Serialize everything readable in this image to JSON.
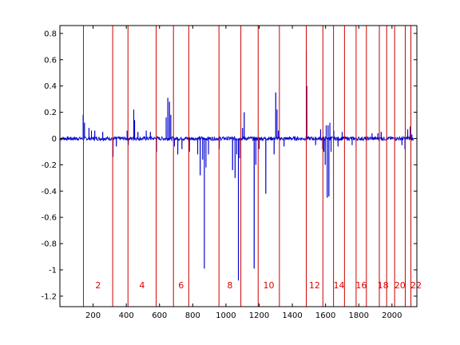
{
  "chart_data": {
    "type": "line",
    "title": "",
    "xlabel": "",
    "ylabel": "",
    "xlim": [
      0,
      2150
    ],
    "ylim": [
      -1.28,
      0.86
    ],
    "grid": false,
    "legend": "none",
    "colors": {
      "series": "#0000cc",
      "boundary": "#cc0000",
      "region_label": "#e00000",
      "axes": "#000000"
    },
    "x_ticks": [
      200,
      400,
      600,
      800,
      1000,
      1200,
      1400,
      1600,
      1800,
      2000
    ],
    "x_tick_labels": [
      "200",
      "400",
      "600",
      "800",
      "1000",
      "1200",
      "1400",
      "1600",
      "1800",
      "2000"
    ],
    "y_ticks": [
      0.8,
      0.6,
      0.4,
      0.2,
      0,
      -0.2,
      -0.4,
      -0.6,
      -0.8,
      -1,
      -1.2
    ],
    "y_tick_labels": [
      "0.8",
      "0.6",
      "0.4",
      "0.2",
      "0",
      "-0.2",
      "-0.4",
      "-0.6",
      "-0.8",
      "-1",
      "-1.2"
    ],
    "boundaries": [
      142,
      318,
      410,
      580,
      684,
      776,
      958,
      1090,
      1194,
      1322,
      1484,
      1584,
      1648,
      1714,
      1784,
      1846,
      1924,
      1968,
      2016,
      2080,
      2114
    ],
    "region_labels": [
      {
        "text": "2",
        "x": 230
      },
      {
        "text": "4",
        "x": 495
      },
      {
        "text": "6",
        "x": 730
      },
      {
        "text": "8",
        "x": 1024
      },
      {
        "text": "10",
        "x": 1258
      },
      {
        "text": "12",
        "x": 1534
      },
      {
        "text": "14",
        "x": 1681
      },
      {
        "text": "16",
        "x": 1815
      },
      {
        "text": "18",
        "x": 1946
      },
      {
        "text": "20",
        "x": 2048
      },
      {
        "text": "22",
        "x": 2145
      }
    ],
    "series": [
      {
        "spikes": [
          {
            "x": 140,
            "y": 0.18
          },
          {
            "x": 148,
            "y": 0.12
          },
          {
            "x": 175,
            "y": 0.08
          },
          {
            "x": 190,
            "y": 0.06
          },
          {
            "x": 210,
            "y": 0.06
          },
          {
            "x": 258,
            "y": 0.05
          },
          {
            "x": 320,
            "y": -0.14
          },
          {
            "x": 340,
            "y": -0.06
          },
          {
            "x": 405,
            "y": 0.06
          },
          {
            "x": 412,
            "y": -0.05
          },
          {
            "x": 445,
            "y": 0.22
          },
          {
            "x": 450,
            "y": 0.14
          },
          {
            "x": 470,
            "y": 0.05
          },
          {
            "x": 520,
            "y": 0.06
          },
          {
            "x": 545,
            "y": 0.05
          },
          {
            "x": 582,
            "y": -0.1
          },
          {
            "x": 640,
            "y": 0.16
          },
          {
            "x": 650,
            "y": 0.31
          },
          {
            "x": 660,
            "y": 0.28
          },
          {
            "x": 668,
            "y": 0.18
          },
          {
            "x": 690,
            "y": -0.06
          },
          {
            "x": 710,
            "y": -0.12
          },
          {
            "x": 735,
            "y": -0.08
          },
          {
            "x": 780,
            "y": -0.1
          },
          {
            "x": 830,
            "y": -0.12
          },
          {
            "x": 845,
            "y": -0.28
          },
          {
            "x": 860,
            "y": -0.16
          },
          {
            "x": 870,
            "y": -0.99
          },
          {
            "x": 880,
            "y": -0.22
          },
          {
            "x": 895,
            "y": -0.12
          },
          {
            "x": 960,
            "y": -0.08
          },
          {
            "x": 1040,
            "y": -0.24
          },
          {
            "x": 1055,
            "y": -0.3
          },
          {
            "x": 1065,
            "y": -0.12
          },
          {
            "x": 1075,
            "y": -1.08
          },
          {
            "x": 1082,
            "y": -0.15
          },
          {
            "x": 1100,
            "y": 0.08
          },
          {
            "x": 1110,
            "y": 0.2
          },
          {
            "x": 1170,
            "y": -0.99
          },
          {
            "x": 1180,
            "y": -0.2
          },
          {
            "x": 1200,
            "y": -0.08
          },
          {
            "x": 1240,
            "y": -0.42
          },
          {
            "x": 1290,
            "y": -0.12
          },
          {
            "x": 1300,
            "y": 0.35
          },
          {
            "x": 1308,
            "y": 0.22
          },
          {
            "x": 1316,
            "y": 0.06
          },
          {
            "x": 1350,
            "y": -0.06
          },
          {
            "x": 1484,
            "y": 0.67
          },
          {
            "x": 1487,
            "y": 0.4
          },
          {
            "x": 1540,
            "y": -0.05
          },
          {
            "x": 1570,
            "y": 0.07
          },
          {
            "x": 1582,
            "y": -0.08
          },
          {
            "x": 1590,
            "y": -0.1
          },
          {
            "x": 1598,
            "y": -0.2
          },
          {
            "x": 1604,
            "y": 0.1
          },
          {
            "x": 1610,
            "y": -0.45
          },
          {
            "x": 1615,
            "y": 0.1
          },
          {
            "x": 1620,
            "y": -0.44
          },
          {
            "x": 1626,
            "y": 0.12
          },
          {
            "x": 1633,
            "y": -0.1
          },
          {
            "x": 1650,
            "y": 0.06
          },
          {
            "x": 1675,
            "y": -0.06
          },
          {
            "x": 1700,
            "y": 0.05
          },
          {
            "x": 1760,
            "y": -0.05
          },
          {
            "x": 1880,
            "y": 0.04
          },
          {
            "x": 1915,
            "y": 0.04
          },
          {
            "x": 1935,
            "y": 0.05
          },
          {
            "x": 2060,
            "y": -0.05
          },
          {
            "x": 2078,
            "y": -0.08
          },
          {
            "x": 2095,
            "y": 0.07
          },
          {
            "x": 2110,
            "y": 0.09
          },
          {
            "x": 2120,
            "y": 0.03
          }
        ]
      }
    ]
  }
}
